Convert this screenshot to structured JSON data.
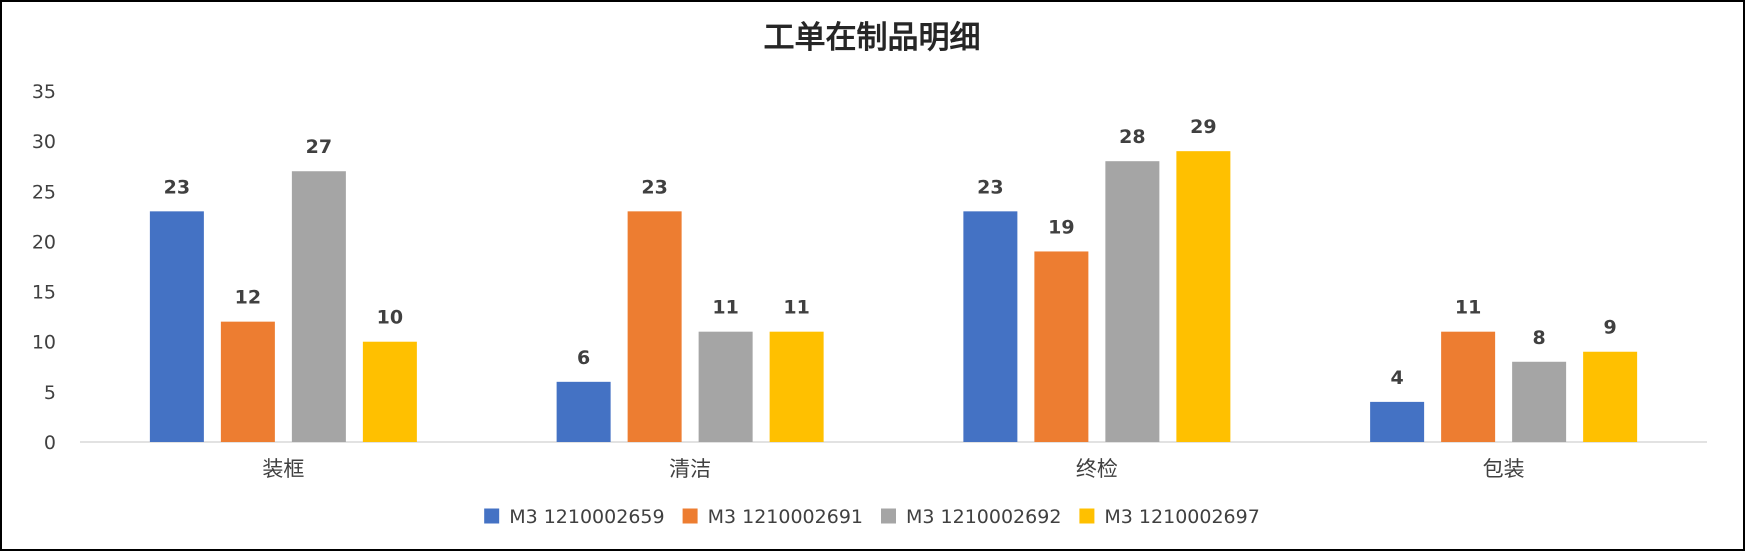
{
  "chart_data": {
    "type": "bar",
    "title": "工单在制品明细",
    "categories": [
      "装框",
      "清洁",
      "终检",
      "包装"
    ],
    "series": [
      {
        "name": "M3 1210002659",
        "color": "#4472C4",
        "values": [
          23,
          6,
          23,
          4
        ]
      },
      {
        "name": "M3 1210002691",
        "color": "#ED7D31",
        "values": [
          12,
          23,
          19,
          11
        ]
      },
      {
        "name": "M3 1210002692",
        "color": "#A5A5A5",
        "values": [
          27,
          11,
          28,
          8
        ]
      },
      {
        "name": "M3 1210002697",
        "color": "#FFC000",
        "values": [
          10,
          11,
          29,
          9
        ]
      }
    ],
    "ylim": [
      0,
      35
    ],
    "yticks": [
      0,
      5,
      10,
      15,
      20,
      25,
      30,
      35
    ],
    "grid": false,
    "data_labels": true,
    "legend_position": "bottom"
  }
}
